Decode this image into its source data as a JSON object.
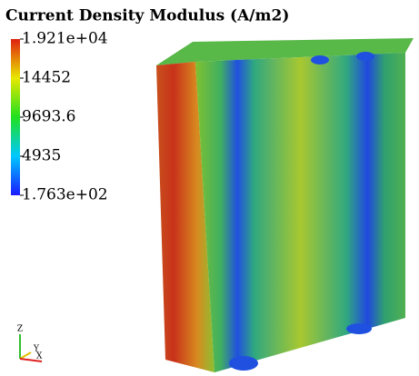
{
  "colorbar": {
    "title": "Current Density Modulus (A/m2)",
    "ticks": [
      {
        "value": 19210,
        "label": "1.921e+04"
      },
      14452,
      9693.6,
      4935,
      {
        "value": 176.3,
        "label": "1.763e+02"
      }
    ]
  },
  "axes": {
    "labels": [
      "Z",
      "Y",
      "X"
    ]
  }
}
